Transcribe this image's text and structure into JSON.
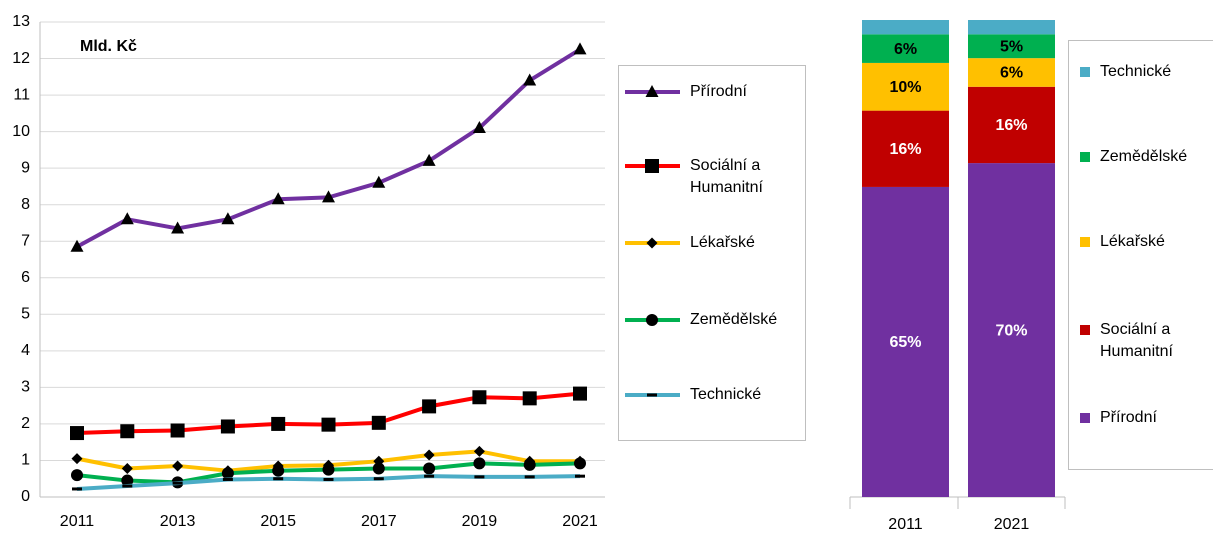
{
  "chart_data": [
    {
      "type": "line",
      "annotation": "Mld. Kč",
      "x": [
        2011,
        2012,
        2013,
        2014,
        2015,
        2016,
        2017,
        2018,
        2019,
        2020,
        2021
      ],
      "xlim": [
        2011,
        2021
      ],
      "xticks": [
        2011,
        2013,
        2015,
        2017,
        2019,
        2021
      ],
      "ylim": [
        0,
        13
      ],
      "yticks": [
        0,
        1,
        2,
        3,
        4,
        5,
        6,
        7,
        8,
        9,
        10,
        11,
        12,
        13
      ],
      "grid": true,
      "legend": "right",
      "series": [
        {
          "name": "Přírodní",
          "color": "#7030a0",
          "marker": "triangle",
          "values": [
            6.85,
            7.6,
            7.35,
            7.6,
            8.15,
            8.2,
            8.6,
            9.2,
            10.1,
            11.4,
            12.25
          ]
        },
        {
          "name": "Sociální a Humanitní",
          "color": "#ff0000",
          "marker": "square",
          "values": [
            1.75,
            1.8,
            1.82,
            1.93,
            2.0,
            1.98,
            2.03,
            2.48,
            2.73,
            2.7,
            2.83
          ]
        },
        {
          "name": "Lékařské",
          "color": "#ffc000",
          "marker": "diamond",
          "values": [
            1.05,
            0.78,
            0.85,
            0.72,
            0.85,
            0.87,
            0.98,
            1.15,
            1.25,
            0.98,
            0.98
          ]
        },
        {
          "name": "Zemědělské",
          "color": "#00b050",
          "marker": "circle",
          "values": [
            0.6,
            0.45,
            0.4,
            0.65,
            0.72,
            0.75,
            0.78,
            0.78,
            0.92,
            0.88,
            0.92
          ]
        },
        {
          "name": "Technické",
          "color": "#4bacc6",
          "marker": "dash",
          "values": [
            0.22,
            0.3,
            0.38,
            0.48,
            0.5,
            0.48,
            0.5,
            0.57,
            0.55,
            0.55,
            0.57
          ]
        }
      ]
    },
    {
      "type": "stacked_bar_100",
      "categories": [
        "2011",
        "2021"
      ],
      "legend": "right",
      "series": [
        {
          "name": "Přírodní",
          "color": "#7030a0",
          "values": [
            65,
            70
          ],
          "value_labels": [
            "65%",
            "70%"
          ]
        },
        {
          "name": "Sociální a Humanitní",
          "color": "#c00000",
          "values": [
            16,
            16
          ],
          "value_labels": [
            "16%",
            "16%"
          ]
        },
        {
          "name": "Lékařské",
          "color": "#ffc000",
          "values": [
            10,
            6
          ],
          "value_labels": [
            "10%",
            "6%"
          ]
        },
        {
          "name": "Zemědělské",
          "color": "#00b050",
          "values": [
            6,
            5
          ],
          "value_labels": [
            "6%",
            "5%"
          ]
        },
        {
          "name": "Technické",
          "color": "#4bacc6",
          "values": [
            3,
            3
          ]
        }
      ]
    }
  ]
}
